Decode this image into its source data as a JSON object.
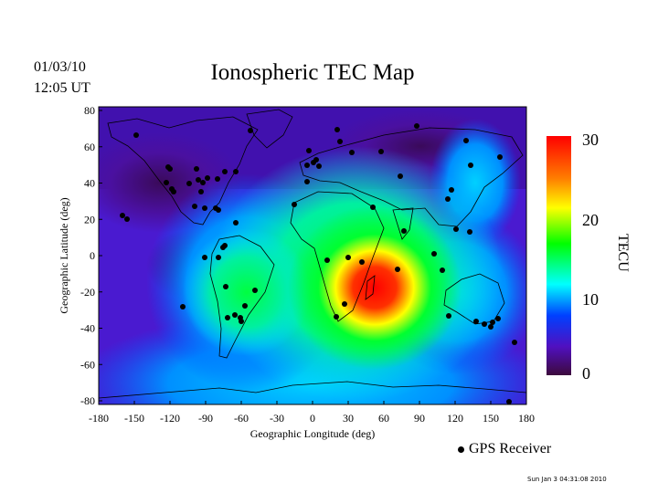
{
  "header": {
    "date": "01/03/10",
    "time": "12:05 UT",
    "title": "Ionospheric TEC Map"
  },
  "map": {
    "x_axis_label": "Geographic Longitude (deg)",
    "y_axis_label": "Geographic Latitude (deg)",
    "lon_ticks": [
      "-180",
      "-150",
      "-120",
      "-90",
      "-60",
      "-30",
      "0",
      "30",
      "60",
      "90",
      "120",
      "150",
      "180"
    ],
    "lat_ticks": [
      "80",
      "60",
      "40",
      "20",
      "0",
      "-20",
      "-40",
      "-60",
      "-80"
    ]
  },
  "colorbar": {
    "title": "TECU",
    "ticks": [
      "30",
      "20",
      "10",
      "0"
    ],
    "colors": [
      "#ff0000",
      "#ffff00",
      "#00ff00",
      "#00ffff",
      "#0000ff",
      "#4b0082",
      "#3d0a3d"
    ]
  },
  "legend": {
    "marker_label": "GPS Receiver",
    "marker_color": "#000000"
  },
  "footer": {
    "timestamp": "Sun Jan  3 04:31:08 2010"
  }
}
